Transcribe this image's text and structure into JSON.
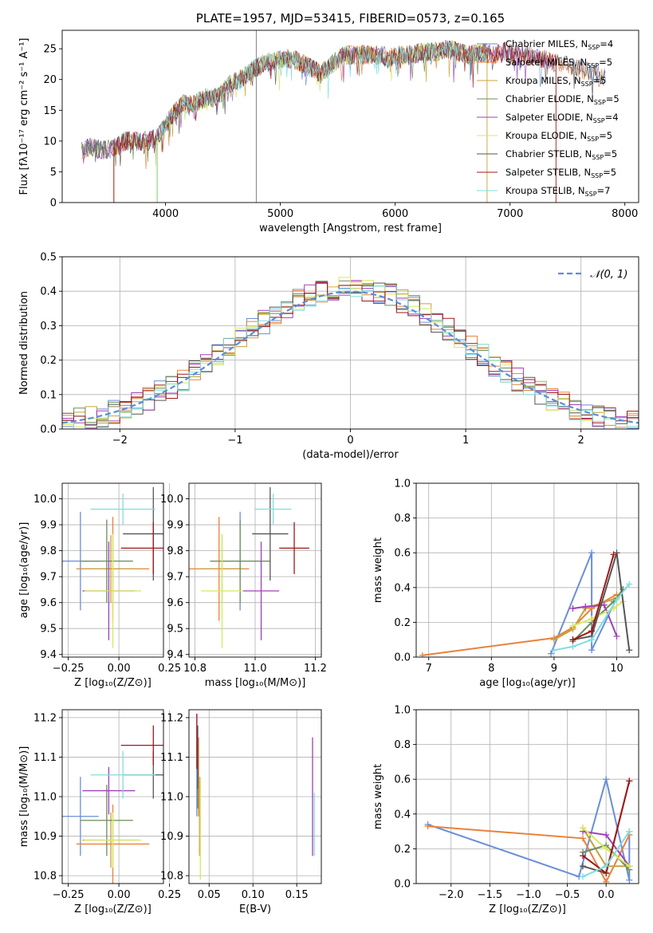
{
  "colors": [
    "#6a8ed8",
    "#e8823c",
    "#c8a23a",
    "#6b8e5a",
    "#a040b8",
    "#d8e860",
    "#555555",
    "#a01818",
    "#80dde0"
  ],
  "chart_data": [
    {
      "id": "spectrum",
      "type": "line",
      "title": "PLATE=1957, MJD=53415, FIBERID=0573, z=0.165",
      "xlabel": "wavelength [Angstrom, rest frame]",
      "ylabel": "Flux [fλ10⁻¹⁷ erg cm⁻² s⁻¹ A⁻¹]",
      "xlim": [
        3100,
        8120
      ],
      "ylim": [
        0,
        28
      ],
      "xticks": [
        "4000",
        "5000",
        "6000",
        "7000",
        "8000"
      ],
      "yticks": [
        "0",
        "5",
        "10",
        "15",
        "20",
        "25"
      ],
      "envelope": [
        [
          3270,
          8.5
        ],
        [
          3350,
          9
        ],
        [
          3450,
          8.5
        ],
        [
          3550,
          9
        ],
        [
          3650,
          10
        ],
        [
          3750,
          10
        ],
        [
          3850,
          10
        ],
        [
          3950,
          11
        ],
        [
          4050,
          14
        ],
        [
          4150,
          16
        ],
        [
          4250,
          16
        ],
        [
          4350,
          17
        ],
        [
          4450,
          17
        ],
        [
          4550,
          19
        ],
        [
          4650,
          20
        ],
        [
          4750,
          21.5
        ],
        [
          4850,
          22.5
        ],
        [
          4950,
          23
        ],
        [
          5050,
          23.5
        ],
        [
          5150,
          23
        ],
        [
          5250,
          22
        ],
        [
          5350,
          21
        ],
        [
          5450,
          22.5
        ],
        [
          5550,
          24
        ],
        [
          5650,
          24
        ],
        [
          5750,
          24
        ],
        [
          5850,
          24
        ],
        [
          5950,
          23.5
        ],
        [
          6050,
          24
        ],
        [
          6150,
          24
        ],
        [
          6250,
          24.5
        ],
        [
          6350,
          24.5
        ],
        [
          6450,
          25
        ],
        [
          6550,
          24.5
        ],
        [
          6650,
          24
        ],
        [
          6750,
          24.5
        ],
        [
          6850,
          24
        ],
        [
          6950,
          24.5
        ],
        [
          7050,
          24
        ],
        [
          7150,
          24
        ],
        [
          7250,
          23.5
        ],
        [
          7350,
          23
        ],
        [
          7450,
          22.5
        ],
        [
          7550,
          22
        ],
        [
          7650,
          21.5
        ],
        [
          7750,
          21
        ],
        [
          7820,
          20.5
        ]
      ],
      "legend": [
        {
          "name": "Chabrier MILES, N",
          "sub": "SSP",
          "tail": "=4"
        },
        {
          "name": "Salpeter MILES, N",
          "sub": "SSP",
          "tail": "=5"
        },
        {
          "name": "Kroupa MILES, N",
          "sub": "SSP",
          "tail": "=5"
        },
        {
          "name": "Chabrier ELODIE, N",
          "sub": "SSP",
          "tail": "=5"
        },
        {
          "name": "Salpeter ELODIE, N",
          "sub": "SSP",
          "tail": "=4"
        },
        {
          "name": "Kroupa ELODIE, N",
          "sub": "SSP",
          "tail": "=5"
        },
        {
          "name": "Chabrier STELIB, N",
          "sub": "SSP",
          "tail": "=5"
        },
        {
          "name": "Salpeter STELIB, N",
          "sub": "SSP",
          "tail": "=5"
        },
        {
          "name": "Kroupa STELIB, N",
          "sub": "SSP",
          "tail": "=7"
        }
      ]
    },
    {
      "id": "residuals",
      "type": "line",
      "xlabel": "(data-model)/error",
      "ylabel": "Normed distribution",
      "xlim": [
        -2.5,
        2.5
      ],
      "ylim": [
        0,
        0.5
      ],
      "xticks": [
        "−2",
        "−1",
        "0",
        "1",
        "2"
      ],
      "yticks": [
        "0.0",
        "0.1",
        "0.2",
        "0.3",
        "0.4",
        "0.5"
      ],
      "legend_label": "𝒩(0, 1)",
      "bin_width": 0.1
    },
    {
      "id": "age_vs_Z",
      "type": "scatter",
      "xlabel": "Z [log₁₀(Z/Z⊙)]",
      "ylabel": "age  [log₁₀(age/yr)]",
      "xlim": [
        -0.28,
        0.22
      ],
      "ylim": [
        9.39,
        10.06
      ],
      "xticks": [
        "−0.25",
        "0.00",
        "0.25"
      ],
      "yticks": [
        "9.4",
        "9.5",
        "9.6",
        "9.7",
        "9.8",
        "9.9",
        "10.0"
      ],
      "points": [
        {
          "x": -0.19,
          "xerr": 0.09,
          "y": 9.76,
          "yerr": 0.19
        },
        {
          "x": -0.03,
          "xerr": 0.18,
          "y": 9.73,
          "yerr": 0.2
        },
        {
          "x": -0.04,
          "xerr": 0.14,
          "y": 9.73,
          "yerr": 0.13
        },
        {
          "x": -0.06,
          "xerr": 0.13,
          "y": 9.76,
          "yerr": 0.16
        },
        {
          "x": -0.05,
          "xerr": 0.13,
          "y": 9.645,
          "yerr": 0.19
        },
        {
          "x": -0.03,
          "xerr": 0.14,
          "y": 9.645,
          "yerr": 0.22
        },
        {
          "x": 0.17,
          "xerr": 0.15,
          "y": 9.865,
          "yerr": 0.18
        },
        {
          "x": 0.17,
          "xerr": 0.16,
          "y": 9.81,
          "yerr": 0.1
        },
        {
          "x": 0.02,
          "xerr": 0.16,
          "y": 9.96,
          "yerr": 0.06
        }
      ]
    },
    {
      "id": "age_vs_mass",
      "type": "scatter",
      "xlabel": "mass [log₁₀(M/M⊙)]",
      "ylabel": "",
      "xlim": [
        10.78,
        11.22
      ],
      "ylim": [
        9.39,
        10.06
      ],
      "xticks": [
        "10.8",
        "11.0",
        "11.2"
      ],
      "yticks": [
        "9.4",
        "9.5",
        "9.6",
        "9.7",
        "9.8",
        "9.9",
        "10.0"
      ],
      "points": [
        {
          "x": 10.95,
          "xerr": 0.1,
          "y": 9.76,
          "yerr": 0.19
        },
        {
          "x": 10.88,
          "xerr": 0.1,
          "y": 9.73,
          "yerr": 0.2
        },
        {
          "x": 10.89,
          "xerr": 0.07,
          "y": 9.73,
          "yerr": 0.13
        },
        {
          "x": 10.95,
          "xerr": 0.1,
          "y": 9.76,
          "yerr": 0.16
        },
        {
          "x": 11.02,
          "xerr": 0.06,
          "y": 9.645,
          "yerr": 0.19
        },
        {
          "x": 10.89,
          "xerr": 0.07,
          "y": 9.645,
          "yerr": 0.22
        },
        {
          "x": 11.05,
          "xerr": 0.06,
          "y": 9.865,
          "yerr": 0.18
        },
        {
          "x": 11.13,
          "xerr": 0.05,
          "y": 9.81,
          "yerr": 0.1
        },
        {
          "x": 11.06,
          "xerr": 0.06,
          "y": 9.96,
          "yerr": 0.06
        }
      ]
    },
    {
      "id": "weight_vs_age",
      "type": "line",
      "xlabel": "age  [log₁₀(age/yr)]",
      "ylabel": "mass weight",
      "xlim": [
        6.8,
        10.35
      ],
      "ylim": [
        0,
        1.0
      ],
      "xticks": [
        "7",
        "8",
        "9",
        "10"
      ],
      "yticks": [
        "0.0",
        "0.2",
        "0.4",
        "0.6",
        "0.8",
        "1.0"
      ],
      "series": [
        {
          "x": [
            8.95,
            9.6,
            9.6,
            10.0
          ],
          "y": [
            0.02,
            0.6,
            0.04,
            0.34
          ]
        },
        {
          "x": [
            6.9,
            9.0,
            9.3,
            9.6,
            10.0
          ],
          "y": [
            0.01,
            0.11,
            0.17,
            0.28,
            0.36
          ]
        },
        {
          "x": [
            9.0,
            9.3,
            9.5,
            10.0
          ],
          "y": [
            0.1,
            0.16,
            0.28,
            0.34
          ]
        },
        {
          "x": [
            9.3,
            9.6,
            9.95,
            10.1
          ],
          "y": [
            0.09,
            0.2,
            0.32,
            0.39
          ]
        },
        {
          "x": [
            9.3,
            9.5,
            9.8,
            10.0
          ],
          "y": [
            0.28,
            0.29,
            0.3,
            0.12
          ]
        },
        {
          "x": [
            9.3,
            9.6,
            9.95,
            10.1
          ],
          "y": [
            0.18,
            0.22,
            0.28,
            0.32
          ]
        },
        {
          "x": [
            9.3,
            9.6,
            10.0,
            10.2
          ],
          "y": [
            0.1,
            0.12,
            0.6,
            0.04
          ]
        },
        {
          "x": [
            9.3,
            9.6,
            9.95
          ],
          "y": [
            0.1,
            0.15,
            0.59
          ]
        },
        {
          "x": [
            9.0,
            9.3,
            9.6,
            10.0,
            10.2
          ],
          "y": [
            0.04,
            0.06,
            0.1,
            0.33,
            0.42
          ]
        }
      ]
    },
    {
      "id": "mass_vs_Z",
      "type": "scatter",
      "xlabel": "Z [log₁₀(Z/Z⊙)]",
      "ylabel": "mass [log₁₀(M/M⊙)]",
      "xlim": [
        -0.28,
        0.22
      ],
      "ylim": [
        10.78,
        11.22
      ],
      "xticks": [
        "−0.25",
        "0.00",
        "0.25"
      ],
      "yticks": [
        "10.8",
        "10.9",
        "11.0",
        "11.1",
        "11.2"
      ],
      "points": [
        {
          "x": -0.19,
          "xerr": 0.09,
          "y": 10.95,
          "yerr": 0.1
        },
        {
          "x": -0.03,
          "xerr": 0.18,
          "y": 10.88,
          "yerr": 0.1
        },
        {
          "x": -0.04,
          "xerr": 0.14,
          "y": 10.89,
          "yerr": 0.07
        },
        {
          "x": -0.06,
          "xerr": 0.13,
          "y": 10.94,
          "yerr": 0.09
        },
        {
          "x": -0.05,
          "xerr": 0.13,
          "y": 11.015,
          "yerr": 0.06
        },
        {
          "x": -0.03,
          "xerr": 0.14,
          "y": 10.89,
          "yerr": 0.07
        },
        {
          "x": 0.17,
          "xerr": 0.15,
          "y": 11.055,
          "yerr": 0.06
        },
        {
          "x": 0.17,
          "xerr": 0.16,
          "y": 11.13,
          "yerr": 0.05
        },
        {
          "x": 0.02,
          "xerr": 0.16,
          "y": 11.055,
          "yerr": 0.06
        }
      ]
    },
    {
      "id": "mass_vs_EBV",
      "type": "scatter",
      "xlabel": "E(B-V)",
      "ylabel": "",
      "xlim": [
        0.027,
        0.178
      ],
      "ylim": [
        10.78,
        11.22
      ],
      "xticks": [
        "0.05",
        "0.10",
        "0.15"
      ],
      "yticks": [
        "10.8",
        "10.9",
        "11.0",
        "11.1",
        "11.2"
      ],
      "points": [
        {
          "x": 0.036,
          "y": 11.08,
          "yerr": 0.13
        },
        {
          "x": 0.038,
          "y": 11.05,
          "yerr": 0.1
        },
        {
          "x": 0.039,
          "y": 10.95,
          "yerr": 0.1
        },
        {
          "x": 0.037,
          "y": 11.05,
          "yerr": 0.08
        },
        {
          "x": 0.168,
          "y": 11.0,
          "yerr": 0.15
        },
        {
          "x": 0.04,
          "y": 10.92,
          "yerr": 0.13
        },
        {
          "x": 0.037,
          "y": 11.1,
          "yerr": 0.08
        },
        {
          "x": 0.036,
          "y": 11.14,
          "yerr": 0.07
        },
        {
          "x": 0.17,
          "y": 10.93,
          "yerr": 0.08
        }
      ]
    },
    {
      "id": "weight_vs_Z",
      "type": "line",
      "xlabel": "Z [log₁₀(Z/Z⊙)]",
      "ylabel": "mass weight",
      "xlim": [
        -2.45,
        0.42
      ],
      "ylim": [
        0,
        1.0
      ],
      "xticks": [
        "−2.0",
        "−1.5",
        "−1.0",
        "−0.5",
        "0.0"
      ],
      "yticks": [
        "0.0",
        "0.2",
        "0.4",
        "0.6",
        "0.8",
        "1.0"
      ],
      "series": [
        {
          "x": [
            -2.3,
            -0.35,
            0.0,
            0.3,
            0.3
          ],
          "y": [
            0.34,
            0.04,
            0.6,
            0.02,
            0.3
          ]
        },
        {
          "x": [
            -2.3,
            -0.3,
            0.0,
            0.3
          ],
          "y": [
            0.33,
            0.26,
            0.01,
            0.28
          ]
        },
        {
          "x": [
            -0.3,
            0.0,
            0.3
          ],
          "y": [
            0.32,
            0.1,
            0.1
          ]
        },
        {
          "x": [
            -0.3,
            0.0,
            0.3
          ],
          "y": [
            0.18,
            0.22,
            0.08
          ]
        },
        {
          "x": [
            -0.3,
            0.0,
            0.3
          ],
          "y": [
            0.3,
            0.28,
            0.1
          ]
        },
        {
          "x": [
            -0.3,
            0.0,
            0.3
          ],
          "y": [
            0.32,
            0.2,
            0.1
          ]
        },
        {
          "x": [
            -0.3,
            0.0,
            0.3
          ],
          "y": [
            0.1,
            0.06,
            0.59
          ]
        },
        {
          "x": [
            -0.3,
            0.0,
            0.3
          ],
          "y": [
            0.16,
            0.06,
            0.59
          ]
        },
        {
          "x": [
            -0.3,
            0.0,
            0.3
          ],
          "y": [
            0.04,
            0.1,
            0.3
          ]
        }
      ]
    }
  ]
}
